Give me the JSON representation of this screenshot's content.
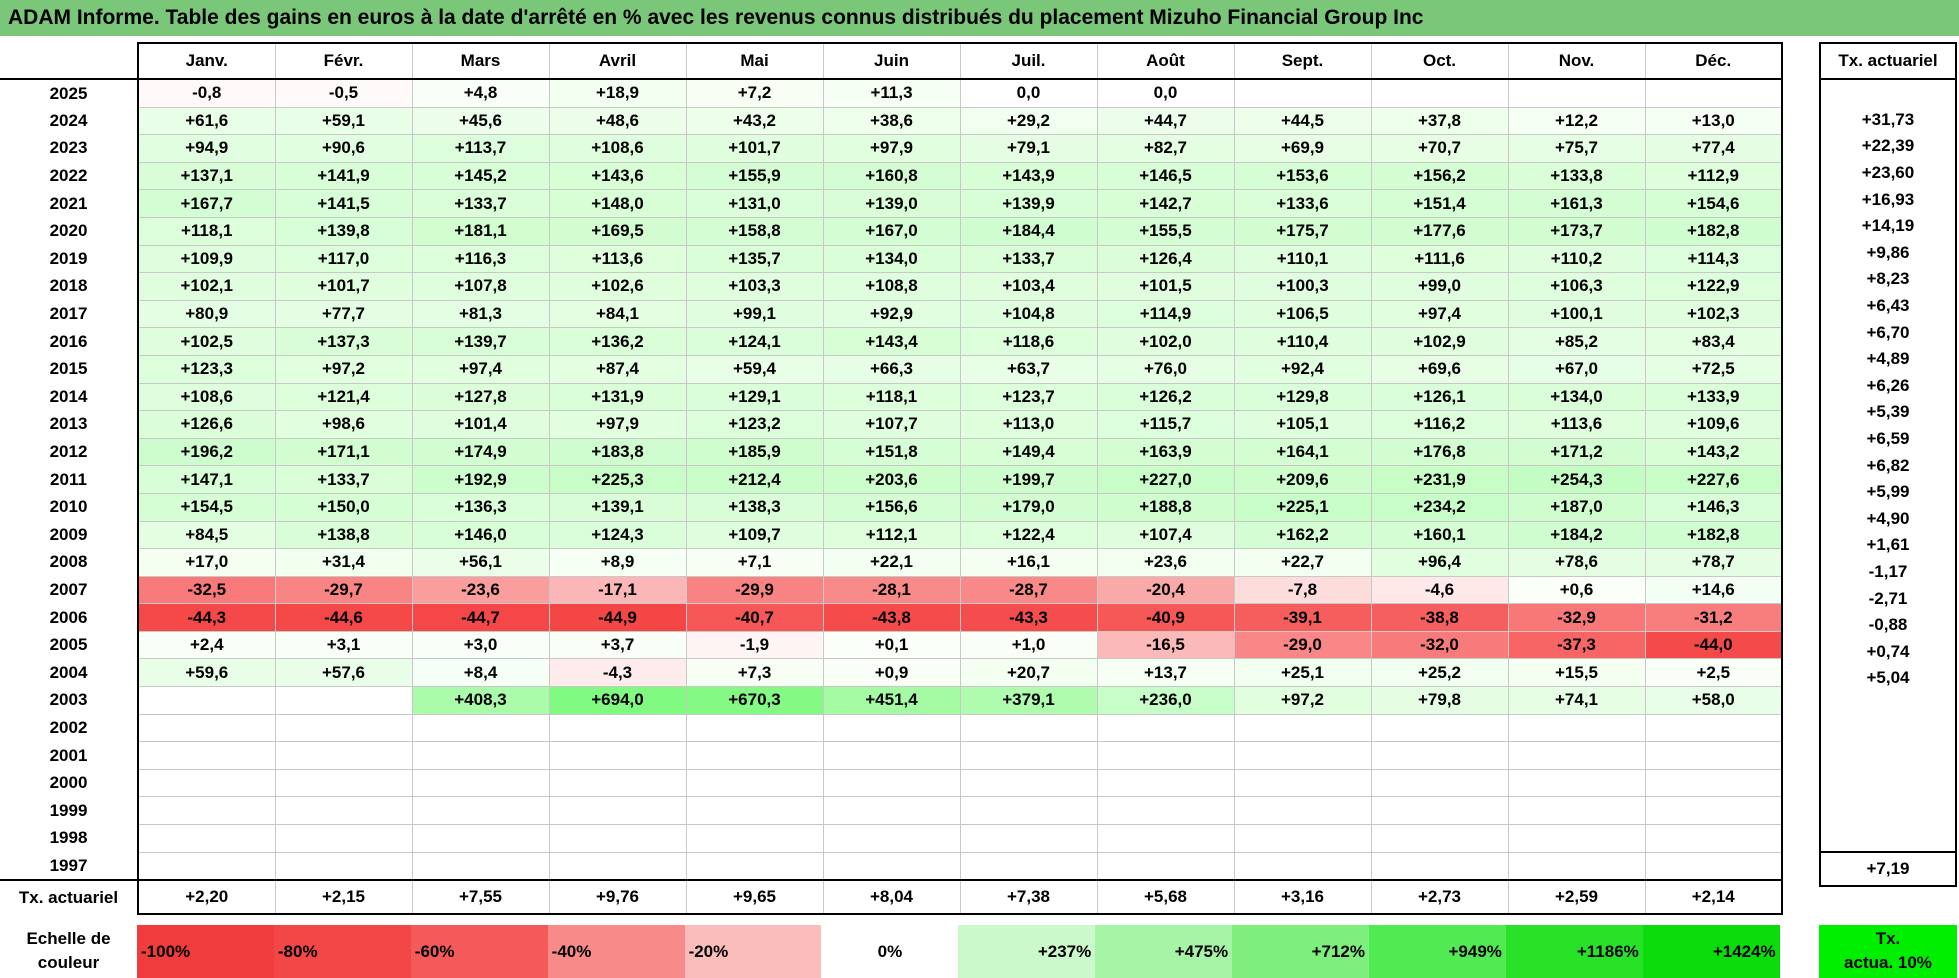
{
  "title": "ADAM Informe. Table des gains en euros à la date d'arrêté en % avec les revenus connus distribués du placement Mizuho Financial Group Inc",
  "months": [
    "Janv.",
    "Févr.",
    "Mars",
    "Avril",
    "Mai",
    "Juin",
    "Juil.",
    "Août",
    "Sept.",
    "Oct.",
    "Nov.",
    "Déc."
  ],
  "ta_header": "Tx. actuariel",
  "rows": [
    {
      "year": "2025",
      "values": [
        "-0,8",
        "-0,5",
        "+4,8",
        "+18,9",
        "+7,2",
        "+11,3",
        "0,0",
        "0,0",
        "",
        "",
        "",
        ""
      ],
      "ta": ""
    },
    {
      "year": "2024",
      "values": [
        "+61,6",
        "+59,1",
        "+45,6",
        "+48,6",
        "+43,2",
        "+38,6",
        "+29,2",
        "+44,7",
        "+44,5",
        "+37,8",
        "+12,2",
        "+13,0"
      ],
      "ta": "+31,73"
    },
    {
      "year": "2023",
      "values": [
        "+94,9",
        "+90,6",
        "+113,7",
        "+108,6",
        "+101,7",
        "+97,9",
        "+79,1",
        "+82,7",
        "+69,9",
        "+70,7",
        "+75,7",
        "+77,4"
      ],
      "ta": "+22,39"
    },
    {
      "year": "2022",
      "values": [
        "+137,1",
        "+141,9",
        "+145,2",
        "+143,6",
        "+155,9",
        "+160,8",
        "+143,9",
        "+146,5",
        "+153,6",
        "+156,2",
        "+133,8",
        "+112,9"
      ],
      "ta": "+23,60"
    },
    {
      "year": "2021",
      "values": [
        "+167,7",
        "+141,5",
        "+133,7",
        "+148,0",
        "+131,0",
        "+139,0",
        "+139,9",
        "+142,7",
        "+133,6",
        "+151,4",
        "+161,3",
        "+154,6"
      ],
      "ta": "+16,93"
    },
    {
      "year": "2020",
      "values": [
        "+118,1",
        "+139,8",
        "+181,1",
        "+169,5",
        "+158,8",
        "+167,0",
        "+184,4",
        "+155,5",
        "+175,7",
        "+177,6",
        "+173,7",
        "+182,8"
      ],
      "ta": "+14,19"
    },
    {
      "year": "2019",
      "values": [
        "+109,9",
        "+117,0",
        "+116,3",
        "+113,6",
        "+135,7",
        "+134,0",
        "+133,7",
        "+126,4",
        "+110,1",
        "+111,6",
        "+110,2",
        "+114,3"
      ],
      "ta": "+9,86"
    },
    {
      "year": "2018",
      "values": [
        "+102,1",
        "+101,7",
        "+107,8",
        "+102,6",
        "+103,3",
        "+108,8",
        "+103,4",
        "+101,5",
        "+100,3",
        "+99,0",
        "+106,3",
        "+122,9"
      ],
      "ta": "+8,23"
    },
    {
      "year": "2017",
      "values": [
        "+80,9",
        "+77,7",
        "+81,3",
        "+84,1",
        "+99,1",
        "+92,9",
        "+104,8",
        "+114,9",
        "+106,5",
        "+97,4",
        "+100,1",
        "+102,3"
      ],
      "ta": "+6,43"
    },
    {
      "year": "2016",
      "values": [
        "+102,5",
        "+137,3",
        "+139,7",
        "+136,2",
        "+124,1",
        "+143,4",
        "+118,6",
        "+102,0",
        "+110,4",
        "+102,9",
        "+85,2",
        "+83,4"
      ],
      "ta": "+6,70"
    },
    {
      "year": "2015",
      "values": [
        "+123,3",
        "+97,2",
        "+97,4",
        "+87,4",
        "+59,4",
        "+66,3",
        "+63,7",
        "+76,0",
        "+92,4",
        "+69,6",
        "+67,0",
        "+72,5"
      ],
      "ta": "+4,89"
    },
    {
      "year": "2014",
      "values": [
        "+108,6",
        "+121,4",
        "+127,8",
        "+131,9",
        "+129,1",
        "+118,1",
        "+123,7",
        "+126,2",
        "+129,8",
        "+126,1",
        "+134,0",
        "+133,9"
      ],
      "ta": "+6,26"
    },
    {
      "year": "2013",
      "values": [
        "+126,6",
        "+98,6",
        "+101,4",
        "+97,9",
        "+123,2",
        "+107,7",
        "+113,0",
        "+115,7",
        "+105,1",
        "+116,2",
        "+113,6",
        "+109,6"
      ],
      "ta": "+5,39"
    },
    {
      "year": "2012",
      "values": [
        "+196,2",
        "+171,1",
        "+174,9",
        "+183,8",
        "+185,9",
        "+151,8",
        "+149,4",
        "+163,9",
        "+164,1",
        "+176,8",
        "+171,2",
        "+143,2"
      ],
      "ta": "+6,59"
    },
    {
      "year": "2011",
      "values": [
        "+147,1",
        "+133,7",
        "+192,9",
        "+225,3",
        "+212,4",
        "+203,6",
        "+199,7",
        "+227,0",
        "+209,6",
        "+231,9",
        "+254,3",
        "+227,6"
      ],
      "ta": "+6,82"
    },
    {
      "year": "2010",
      "values": [
        "+154,5",
        "+150,0",
        "+136,3",
        "+139,1",
        "+138,3",
        "+156,6",
        "+179,0",
        "+188,8",
        "+225,1",
        "+234,2",
        "+187,0",
        "+146,3"
      ],
      "ta": "+5,99"
    },
    {
      "year": "2009",
      "values": [
        "+84,5",
        "+138,8",
        "+146,0",
        "+124,3",
        "+109,7",
        "+112,1",
        "+122,4",
        "+107,4",
        "+162,2",
        "+160,1",
        "+184,2",
        "+182,8"
      ],
      "ta": "+4,90"
    },
    {
      "year": "2008",
      "values": [
        "+17,0",
        "+31,4",
        "+56,1",
        "+8,9",
        "+7,1",
        "+22,1",
        "+16,1",
        "+23,6",
        "+22,7",
        "+96,4",
        "+78,6",
        "+78,7"
      ],
      "ta": "+1,61"
    },
    {
      "year": "2007",
      "values": [
        "-32,5",
        "-29,7",
        "-23,6",
        "-17,1",
        "-29,9",
        "-28,1",
        "-28,7",
        "-20,4",
        "-7,8",
        "-4,6",
        "+0,6",
        "+14,6"
      ],
      "ta": "-1,17"
    },
    {
      "year": "2006",
      "values": [
        "-44,3",
        "-44,6",
        "-44,7",
        "-44,9",
        "-40,7",
        "-43,8",
        "-43,3",
        "-40,9",
        "-39,1",
        "-38,8",
        "-32,9",
        "-31,2"
      ],
      "ta": "-2,71"
    },
    {
      "year": "2005",
      "values": [
        "+2,4",
        "+3,1",
        "+3,0",
        "+3,7",
        "-1,9",
        "+0,1",
        "+1,0",
        "-16,5",
        "-29,0",
        "-32,0",
        "-37,3",
        "-44,0"
      ],
      "ta": "-0,88"
    },
    {
      "year": "2004",
      "values": [
        "+59,6",
        "+57,6",
        "+8,4",
        "-4,3",
        "+7,3",
        "+0,9",
        "+20,7",
        "+13,7",
        "+25,1",
        "+25,2",
        "+15,5",
        "+2,5"
      ],
      "ta": "+0,74"
    },
    {
      "year": "2003",
      "values": [
        "",
        "",
        "+408,3",
        "+694,0",
        "+670,3",
        "+451,4",
        "+379,1",
        "+236,0",
        "+97,2",
        "+79,8",
        "+74,1",
        "+58,0"
      ],
      "ta": "+5,04"
    },
    {
      "year": "2002",
      "values": [
        "",
        "",
        "",
        "",
        "",
        "",
        "",
        "",
        "",
        "",
        "",
        ""
      ],
      "ta": ""
    },
    {
      "year": "2001",
      "values": [
        "",
        "",
        "",
        "",
        "",
        "",
        "",
        "",
        "",
        "",
        "",
        ""
      ],
      "ta": ""
    },
    {
      "year": "2000",
      "values": [
        "",
        "",
        "",
        "",
        "",
        "",
        "",
        "",
        "",
        "",
        "",
        ""
      ],
      "ta": ""
    },
    {
      "year": "1999",
      "values": [
        "",
        "",
        "",
        "",
        "",
        "",
        "",
        "",
        "",
        "",
        "",
        ""
      ],
      "ta": ""
    },
    {
      "year": "1998",
      "values": [
        "",
        "",
        "",
        "",
        "",
        "",
        "",
        "",
        "",
        "",
        "",
        ""
      ],
      "ta": ""
    },
    {
      "year": "1997",
      "values": [
        "",
        "",
        "",
        "",
        "",
        "",
        "",
        "",
        "",
        "",
        "",
        ""
      ],
      "ta": ""
    }
  ],
  "totals": {
    "label": "Tx. actuariel",
    "values": [
      "+2,20",
      "+2,15",
      "+7,55",
      "+9,76",
      "+9,65",
      "+8,04",
      "+7,38",
      "+5,68",
      "+3,16",
      "+2,73",
      "+2,59",
      "+2,14"
    ],
    "ta": "+7,19"
  },
  "legend": {
    "label_line1": "Echelle de",
    "label_line2": "couleur",
    "cells": [
      {
        "text": "-100%",
        "color": "#f03c3c",
        "align": "left"
      },
      {
        "text": "-80%",
        "color": "#f34646",
        "align": "left"
      },
      {
        "text": "-60%",
        "color": "#f55a5a",
        "align": "left"
      },
      {
        "text": "-40%",
        "color": "#f88a8a",
        "align": "left"
      },
      {
        "text": "-20%",
        "color": "#fbbcbc",
        "align": "left"
      },
      {
        "text": "0%",
        "color": "#ffffff",
        "align": "center"
      },
      {
        "text": "+237%",
        "color": "#ccf9cc",
        "align": "right"
      },
      {
        "text": "+475%",
        "color": "#a6f4a6",
        "align": "right"
      },
      {
        "text": "+712%",
        "color": "#7cef7c",
        "align": "right"
      },
      {
        "text": "+949%",
        "color": "#52ea52",
        "align": "right"
      },
      {
        "text": "+1186%",
        "color": "#28e228",
        "align": "right"
      },
      {
        "text": "+1424%",
        "color": "#0bdc0b",
        "align": "right"
      }
    ],
    "ta_line1": "Tx.",
    "ta_line2": "actua. 10%",
    "ta_color": "#00ee00"
  },
  "colors": {
    "title_bar": "#7ac77a",
    "positive": "#00e000",
    "negative": "#f03c3c"
  }
}
